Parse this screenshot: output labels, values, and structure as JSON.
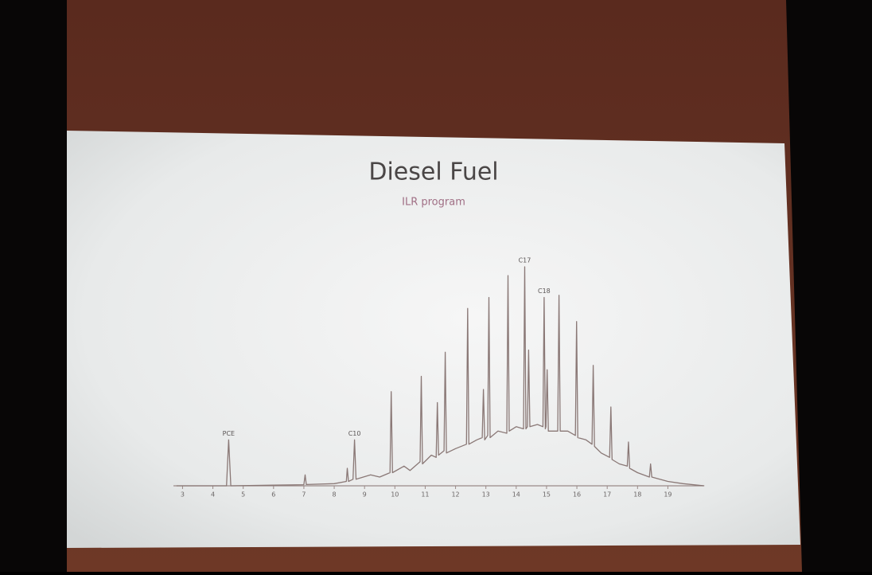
{
  "chart_data": {
    "type": "line",
    "title": "Diesel Fuel",
    "subtitle": "ILR program",
    "color": "#8a7876",
    "x": [
      2.8,
      4.45,
      4.52,
      4.59,
      6.0,
      7.0,
      7.04,
      7.08,
      8.0,
      8.4,
      8.43,
      8.47,
      8.62,
      8.67,
      8.72,
      9.2,
      9.5,
      9.84,
      9.88,
      9.92,
      10.3,
      10.5,
      10.83,
      10.87,
      10.91,
      11.2,
      11.36,
      11.4,
      11.44,
      11.62,
      11.66,
      11.7,
      12.0,
      12.36,
      12.4,
      12.44,
      12.7,
      12.88,
      12.92,
      12.96,
      13.06,
      13.1,
      13.14,
      13.4,
      13.69,
      13.73,
      13.77,
      14.0,
      14.24,
      14.28,
      14.32,
      14.37,
      14.41,
      14.45,
      14.7,
      14.88,
      14.92,
      14.96,
      14.98,
      15.02,
      15.06,
      15.37,
      15.41,
      15.45,
      15.7,
      15.95,
      15.99,
      16.03,
      16.3,
      16.5,
      16.54,
      16.58,
      16.8,
      17.08,
      17.12,
      17.16,
      17.4,
      17.66,
      17.7,
      17.74,
      18.0,
      18.39,
      18.43,
      18.47,
      19.0,
      19.5,
      20.2
    ],
    "values": [
      0,
      0,
      21,
      0,
      0.3,
      0.5,
      5,
      0.6,
      1,
      2,
      8,
      2,
      3,
      21,
      3,
      5,
      4,
      6,
      43,
      6,
      9,
      7,
      11,
      50,
      10,
      14,
      13,
      38,
      14,
      16,
      61,
      15,
      17,
      19,
      81,
      19,
      21,
      22,
      44,
      21,
      23,
      86,
      22,
      25,
      24,
      96,
      25,
      27,
      26,
      100,
      26,
      27,
      62,
      27,
      28,
      27,
      86,
      26,
      27,
      53,
      25,
      25,
      87,
      25,
      25,
      23,
      75,
      22,
      21,
      19,
      55,
      18,
      15,
      13,
      36,
      12,
      10,
      9,
      20,
      8,
      6,
      4,
      10,
      4,
      2,
      1,
      0
    ],
    "xlim": [
      2.7,
      20.3
    ],
    "ylim": [
      0,
      100
    ],
    "xticks": [
      3,
      4,
      5,
      6,
      7,
      8,
      9,
      10,
      11,
      12,
      13,
      14,
      15,
      16,
      17,
      18,
      19
    ],
    "annotations": [
      {
        "text": "PCE",
        "x": 4.52
      },
      {
        "text": "C10",
        "x": 8.67
      },
      {
        "text": "C17",
        "x": 14.28
      },
      {
        "text": "C18",
        "x": 14.92
      }
    ]
  }
}
